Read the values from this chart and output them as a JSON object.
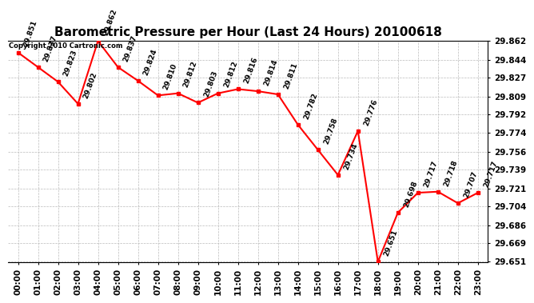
{
  "title": "Barometric Pressure per Hour (Last 24 Hours) 20100618",
  "copyright": "Copyright 2010 Cartronic.com",
  "hours": [
    0,
    1,
    2,
    3,
    4,
    5,
    6,
    7,
    8,
    9,
    10,
    11,
    12,
    13,
    14,
    15,
    16,
    17,
    18,
    19,
    20,
    21,
    22,
    23
  ],
  "values": [
    29.851,
    29.837,
    29.823,
    29.802,
    29.862,
    29.837,
    29.824,
    29.81,
    29.812,
    29.803,
    29.812,
    29.816,
    29.814,
    29.811,
    29.782,
    29.758,
    29.734,
    29.776,
    29.651,
    29.698,
    29.717,
    29.718,
    29.707,
    29.717
  ],
  "ylim_min": 29.651,
  "ylim_max": 29.862,
  "yticks": [
    29.651,
    29.669,
    29.686,
    29.704,
    29.721,
    29.739,
    29.756,
    29.774,
    29.792,
    29.809,
    29.827,
    29.844,
    29.862
  ],
  "line_color": "red",
  "marker_color": "red",
  "bg_color": "#ffffff",
  "plot_bg_color": "#ffffff",
  "grid_color": "#bbbbbb",
  "title_fontsize": 11,
  "label_fontsize": 6.5,
  "tick_fontsize": 7.5,
  "copyright_fontsize": 6
}
